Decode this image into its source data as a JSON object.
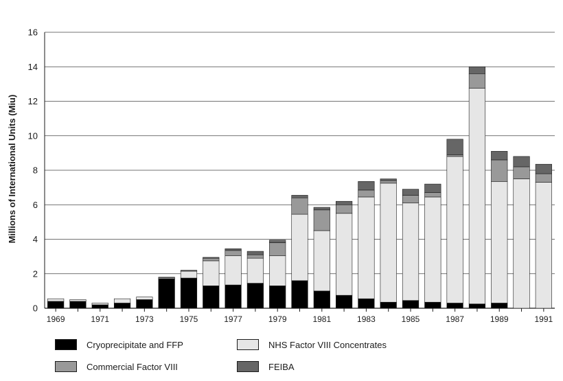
{
  "chart_data": {
    "type": "bar",
    "stacked": true,
    "ylabel": "Millions of International Units (Miu)",
    "xlabel": "",
    "ylim": [
      0,
      16
    ],
    "yticks": [
      0,
      2,
      4,
      6,
      8,
      10,
      12,
      14,
      16
    ],
    "grid": true,
    "legend_position": "bottom",
    "categories": [
      "1969",
      "1970",
      "1971",
      "1972",
      "1973",
      "1974",
      "1975",
      "1976",
      "1977",
      "1978",
      "1979",
      "1980",
      "1981",
      "1982",
      "1983",
      "1984",
      "1985",
      "1986",
      "1987",
      "1988",
      "1989",
      "1990",
      "1991"
    ],
    "xtick_labels": [
      "1969",
      "",
      "1971",
      "",
      "1973",
      "",
      "1975",
      "",
      "1977",
      "",
      "1979",
      "",
      "1981",
      "",
      "1983",
      "",
      "1985",
      "",
      "1987",
      "",
      "1989",
      "",
      "1991"
    ],
    "series": [
      {
        "name": "Cryoprecipitate and FFP",
        "color": "#000000",
        "values": [
          0.4,
          0.4,
          0.2,
          0.3,
          0.5,
          1.7,
          1.75,
          1.3,
          1.35,
          1.45,
          1.3,
          1.6,
          1.0,
          0.75,
          0.55,
          0.35,
          0.45,
          0.35,
          0.3,
          0.25,
          0.3,
          0.0,
          0.0
        ]
      },
      {
        "name": "NHS Factor VIII Concentrates",
        "color": "#e6e6e6",
        "values": [
          0.15,
          0.1,
          0.1,
          0.25,
          0.15,
          0.05,
          0.4,
          1.45,
          1.7,
          1.45,
          1.75,
          3.85,
          3.5,
          4.75,
          5.9,
          6.9,
          5.65,
          6.1,
          8.5,
          12.5,
          7.05,
          7.5,
          7.3
        ]
      },
      {
        "name": "Commercial Factor VIII",
        "color": "#999999",
        "values": [
          0.0,
          0.0,
          0.0,
          0.0,
          0.0,
          0.0,
          0.0,
          0.15,
          0.3,
          0.2,
          0.75,
          0.95,
          1.2,
          0.5,
          0.4,
          0.15,
          0.45,
          0.25,
          0.1,
          0.85,
          1.25,
          0.7,
          0.5
        ]
      },
      {
        "name": "FEIBA",
        "color": "#666666",
        "values": [
          0.0,
          0.0,
          0.0,
          0.0,
          0.0,
          0.05,
          0.05,
          0.05,
          0.1,
          0.2,
          0.15,
          0.15,
          0.15,
          0.2,
          0.5,
          0.1,
          0.35,
          0.5,
          0.9,
          0.4,
          0.5,
          0.6,
          0.55
        ]
      }
    ]
  },
  "legend": {
    "items": [
      {
        "label": "Cryoprecipitate and FFP",
        "color": "#000000"
      },
      {
        "label": "NHS Factor VIII Concentrates",
        "color": "#e6e6e6"
      },
      {
        "label": "Commercial Factor VIII",
        "color": "#999999"
      },
      {
        "label": "FEIBA",
        "color": "#666666"
      }
    ]
  }
}
